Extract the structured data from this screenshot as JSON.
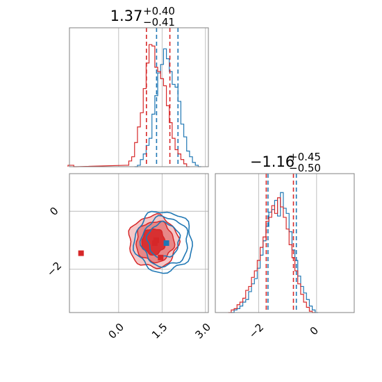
{
  "chart_data": {
    "type": "corner",
    "colors": {
      "blue": "#1f77b4",
      "red": "#d62728",
      "grid": "#b0b0b0",
      "spine": "#808080"
    },
    "panels": [
      {
        "id": "hist-param1",
        "type": "histogram",
        "title": {
          "main": "1.37",
          "upper": "+0.40",
          "lower": "−0.41"
        },
        "xlim": [
          -1.7,
          3.1
        ],
        "gridlines_x": [
          0.0,
          1.5,
          3.0
        ],
        "series": [
          {
            "color": "blue",
            "hist": [
              [
                0.6,
                0.0
              ],
              [
                0.7,
                0.01
              ],
              [
                0.8,
                0.05
              ],
              [
                0.9,
                0.09
              ],
              [
                1.0,
                0.15
              ],
              [
                1.1,
                0.2
              ],
              [
                1.2,
                0.37
              ],
              [
                1.3,
                0.5
              ],
              [
                1.4,
                0.66
              ],
              [
                1.5,
                0.72
              ],
              [
                1.6,
                0.83
              ],
              [
                1.7,
                0.76
              ],
              [
                1.8,
                0.67
              ],
              [
                1.9,
                0.58
              ],
              [
                2.0,
                0.56
              ],
              [
                2.1,
                0.46
              ],
              [
                2.2,
                0.3
              ],
              [
                2.3,
                0.21
              ],
              [
                2.4,
                0.11
              ],
              [
                2.5,
                0.07
              ],
              [
                2.6,
                0.03
              ],
              [
                2.7,
                0.01
              ],
              [
                2.8,
                0.0
              ]
            ],
            "quantile_lines": [
              1.31,
              2.05
            ]
          },
          {
            "color": "red",
            "hist": [
              [
                -1.7,
                0.01
              ],
              [
                -1.6,
                0.01
              ],
              [
                -1.5,
                0.0
              ],
              [
                0.3,
                0.01
              ],
              [
                0.4,
                0.04
              ],
              [
                0.5,
                0.07
              ],
              [
                0.6,
                0.17
              ],
              [
                0.7,
                0.28
              ],
              [
                0.8,
                0.38
              ],
              [
                0.9,
                0.55
              ],
              [
                1.0,
                0.73
              ],
              [
                1.1,
                0.86
              ],
              [
                1.2,
                0.85
              ],
              [
                1.3,
                0.7
              ],
              [
                1.4,
                0.67
              ],
              [
                1.5,
                0.62
              ],
              [
                1.6,
                0.57
              ],
              [
                1.7,
                0.43
              ],
              [
                1.8,
                0.31
              ],
              [
                1.9,
                0.2
              ],
              [
                2.0,
                0.12
              ],
              [
                2.1,
                0.09
              ],
              [
                2.2,
                0.05
              ],
              [
                2.3,
                0.02
              ],
              [
                2.4,
                0.0
              ]
            ],
            "quantile_lines": [
              0.96,
              1.77
            ]
          }
        ]
      },
      {
        "id": "scatter-param1-param2",
        "type": "contour",
        "xlim": [
          -1.7,
          3.1
        ],
        "ylim": [
          -3.5,
          1.3
        ],
        "gridlines_x": [
          0.0,
          1.5,
          3.0
        ],
        "gridlines_y": [
          -2,
          0
        ],
        "xtick_labels": [
          "0.0",
          "1.5",
          "3.0"
        ],
        "ytick_labels": [
          "−2",
          "0"
        ],
        "series": [
          {
            "color": "blue",
            "contour_levels": [
              {
                "center": [
                  1.55,
                  -1.05
                ],
                "radius": [
                  1.0,
                  1.05
                ]
              },
              {
                "center": [
                  1.6,
                  -1.05
                ],
                "radius": [
                  0.8,
                  0.85
                ]
              },
              {
                "center": [
                  1.55,
                  -1.0
                ],
                "radius": [
                  0.55,
                  0.6
                ]
              }
            ],
            "markers": [
              [
                1.65,
                -1.1
              ]
            ]
          },
          {
            "color": "red",
            "contour_levels": [
              {
                "center": [
                  1.2,
                  -1.05
                ],
                "radius": [
                  0.85,
                  0.9
                ]
              },
              {
                "center": [
                  1.25,
                  -1.05
                ],
                "radius": [
                  0.65,
                  0.7
                ]
              },
              {
                "center": [
                  1.2,
                  -1.05
                ],
                "radius": [
                  0.4,
                  0.45
                ]
              }
            ],
            "markers": [
              [
                -1.3,
                -1.45
              ],
              [
                1.3,
                -1.0
              ],
              [
                1.45,
                -1.6
              ],
              [
                1.25,
                -1.1
              ]
            ]
          }
        ]
      },
      {
        "id": "hist-param2",
        "type": "histogram",
        "title": {
          "main": "−1.16",
          "upper": "+0.45",
          "lower": "−0.50"
        },
        "xlim": [
          -3.5,
          1.3
        ],
        "gridlines_x": [
          -2,
          0
        ],
        "xtick_labels": [
          "−2",
          "0"
        ],
        "series": [
          {
            "color": "blue",
            "hist": [
              [
                -2.9,
                0.0
              ],
              [
                -2.8,
                0.02
              ],
              [
                -2.7,
                0.03
              ],
              [
                -2.6,
                0.05
              ],
              [
                -2.5,
                0.08
              ],
              [
                -2.4,
                0.1
              ],
              [
                -2.3,
                0.16
              ],
              [
                -2.2,
                0.22
              ],
              [
                -2.1,
                0.26
              ],
              [
                -2.0,
                0.34
              ],
              [
                -1.9,
                0.44
              ],
              [
                -1.8,
                0.55
              ],
              [
                -1.7,
                0.66
              ],
              [
                -1.6,
                0.77
              ],
              [
                -1.5,
                0.79
              ],
              [
                -1.4,
                0.86
              ],
              [
                -1.3,
                0.74
              ],
              [
                -1.2,
                0.92
              ],
              [
                -1.1,
                0.8
              ],
              [
                -1.0,
                0.76
              ],
              [
                -0.9,
                0.62
              ],
              [
                -0.8,
                0.48
              ],
              [
                -0.7,
                0.4
              ],
              [
                -0.6,
                0.28
              ],
              [
                -0.5,
                0.2
              ],
              [
                -0.4,
                0.15
              ],
              [
                -0.3,
                0.1
              ],
              [
                -0.2,
                0.05
              ],
              [
                -0.1,
                0.02
              ],
              [
                0.0,
                0.0
              ]
            ],
            "quantile_lines": [
              -1.68,
              -0.7
            ]
          },
          {
            "color": "red",
            "hist": [
              [
                -3.0,
                0.0
              ],
              [
                -2.9,
                0.02
              ],
              [
                -2.8,
                0.03
              ],
              [
                -2.7,
                0.06
              ],
              [
                -2.6,
                0.08
              ],
              [
                -2.5,
                0.11
              ],
              [
                -2.4,
                0.17
              ],
              [
                -2.3,
                0.2
              ],
              [
                -2.2,
                0.27
              ],
              [
                -2.1,
                0.32
              ],
              [
                -2.0,
                0.4
              ],
              [
                -1.9,
                0.5
              ],
              [
                -1.8,
                0.58
              ],
              [
                -1.7,
                0.7
              ],
              [
                -1.6,
                0.73
              ],
              [
                -1.5,
                0.82
              ],
              [
                -1.4,
                0.76
              ],
              [
                -1.3,
                0.88
              ],
              [
                -1.2,
                0.81
              ],
              [
                -1.1,
                0.73
              ],
              [
                -1.0,
                0.64
              ],
              [
                -0.9,
                0.52
              ],
              [
                -0.8,
                0.42
              ],
              [
                -0.7,
                0.32
              ],
              [
                -0.6,
                0.22
              ],
              [
                -0.5,
                0.14
              ],
              [
                -0.4,
                0.08
              ],
              [
                -0.3,
                0.04
              ],
              [
                -0.2,
                0.01
              ],
              [
                -0.1,
                0.0
              ]
            ],
            "quantile_lines": [
              -1.74,
              -0.8
            ]
          }
        ]
      }
    ]
  }
}
